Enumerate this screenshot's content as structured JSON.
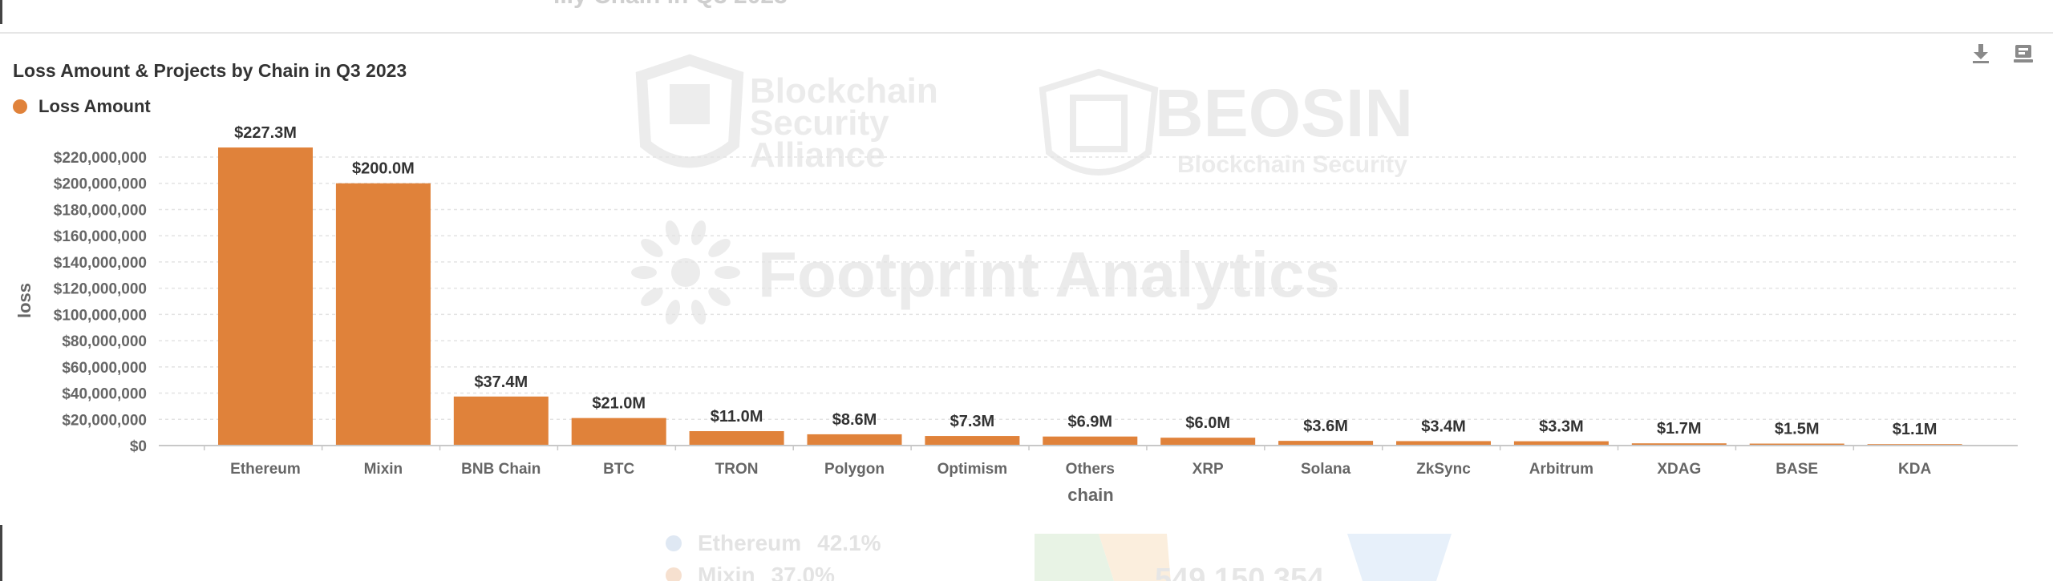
{
  "page": {
    "top_cut_text": "...y Chain in Q3 2023",
    "download_icon": "download-icon",
    "app_icon": "app-icon"
  },
  "chart_data": {
    "type": "bar",
    "title": "Loss Amount & Projects by Chain in Q3 2023",
    "xlabel": "chain",
    "ylabel": "loss",
    "legend": {
      "position": "top-left",
      "entries": [
        "Loss Amount"
      ]
    },
    "grid": true,
    "ylim": [
      0,
      220000000
    ],
    "yticks": [
      0,
      20000000,
      40000000,
      60000000,
      80000000,
      100000000,
      120000000,
      140000000,
      160000000,
      180000000,
      200000000,
      220000000
    ],
    "ytick_labels": [
      "$0",
      "$20,000,000",
      "$40,000,000",
      "$60,000,000",
      "$80,000,000",
      "$100,000,000",
      "$120,000,000",
      "$140,000,000",
      "$160,000,000",
      "$180,000,000",
      "$200,000,000",
      "$220,000,000"
    ],
    "categories": [
      "Ethereum",
      "Mixin",
      "BNB Chain",
      "BTC",
      "TRON",
      "Polygon",
      "Optimism",
      "Others",
      "XRP",
      "Solana",
      "ZkSync",
      "Arbitrum",
      "XDAG",
      "BASE",
      "KDA"
    ],
    "series": [
      {
        "name": "Loss Amount",
        "color": "#e0823a",
        "values": [
          227300000,
          200000000,
          37400000,
          21000000,
          11000000,
          8600000,
          7300000,
          6900000,
          6000000,
          3600000,
          3400000,
          3300000,
          1700000,
          1500000,
          1100000
        ],
        "data_labels": [
          "$227.3M",
          "$200.0M",
          "$37.4M",
          "$21.0M",
          "$11.0M",
          "$8.6M",
          "$7.3M",
          "$6.9M",
          "$6.0M",
          "$3.6M",
          "$3.4M",
          "$3.3M",
          "$1.7M",
          "$1.5M",
          "$1.1M"
        ]
      }
    ]
  },
  "watermarks": {
    "bsa_lines": [
      "Blockchain",
      "Security",
      "Alliance"
    ],
    "beosin_name": "BEOSIN",
    "beosin_sub": "Blockchain Security",
    "footprint": "Footprint Analytics"
  },
  "bottom_cut": {
    "legend": [
      {
        "name": "Ethereum",
        "value": "42.1%",
        "color": "#dfe8f3"
      },
      {
        "name": "Mixin",
        "value": "37.0%",
        "color": "#f6e0cf"
      }
    ],
    "number": "549,150,354"
  }
}
